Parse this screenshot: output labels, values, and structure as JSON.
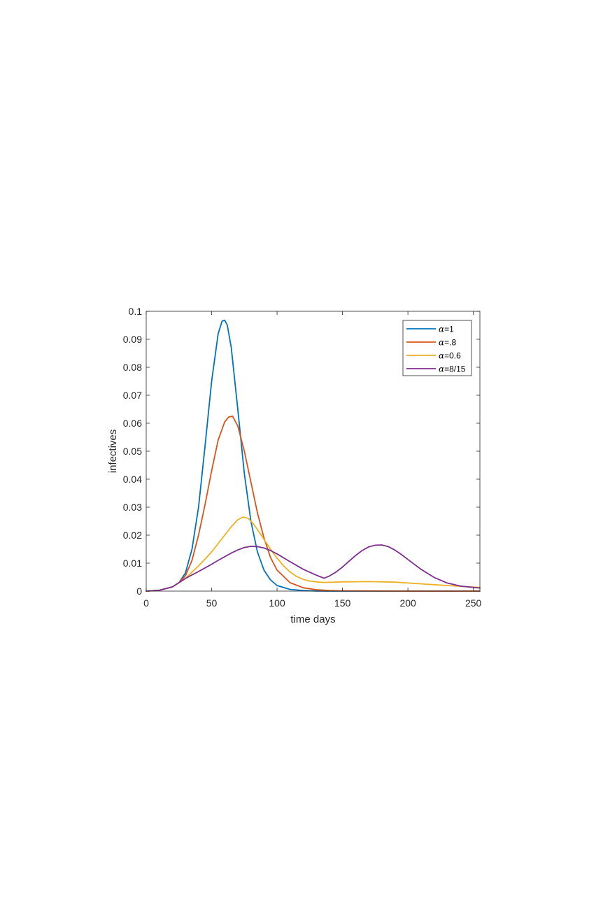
{
  "chart_data": {
    "type": "line",
    "title": "",
    "xlabel": "time days",
    "ylabel": "infectives",
    "xlim": [
      0,
      255
    ],
    "ylim": [
      0,
      0.1
    ],
    "xticks": [
      0,
      50,
      100,
      150,
      200,
      250
    ],
    "xtick_labels": [
      "0",
      "50",
      "100",
      "150",
      "200",
      "250"
    ],
    "yticks": [
      0,
      0.01,
      0.02,
      0.03,
      0.04,
      0.05,
      0.06,
      0.07,
      0.08,
      0.09,
      0.1
    ],
    "ytick_labels": [
      "0",
      "0.01",
      "0.02",
      "0.03",
      "0.04",
      "0.05",
      "0.06",
      "0.07",
      "0.08",
      "0.09",
      "0.1"
    ],
    "grid": false,
    "legend_position": "top-right",
    "series": [
      {
        "name": "α=1",
        "legend_symbol": "α",
        "legend_value": "=1",
        "color": "#0072BD",
        "x": [
          0,
          10,
          20,
          25,
          30,
          35,
          40,
          45,
          50,
          55,
          58,
          60,
          62,
          65,
          70,
          75,
          80,
          85,
          90,
          95,
          100,
          110,
          120,
          130,
          140,
          150,
          200,
          255
        ],
        "y": [
          0,
          0.0003,
          0.0015,
          0.003,
          0.0065,
          0.015,
          0.03,
          0.052,
          0.075,
          0.092,
          0.0965,
          0.0968,
          0.095,
          0.087,
          0.065,
          0.042,
          0.025,
          0.014,
          0.0075,
          0.004,
          0.002,
          0.0006,
          0.0002,
          5e-05,
          0,
          0,
          0,
          0
        ]
      },
      {
        "name": "α=.8",
        "legend_symbol": "α",
        "legend_value": "=.8",
        "color": "#D95319",
        "x": [
          0,
          10,
          20,
          25,
          30,
          35,
          40,
          45,
          50,
          55,
          60,
          63,
          66,
          70,
          75,
          80,
          85,
          90,
          95,
          100,
          110,
          120,
          130,
          140,
          150,
          200,
          255
        ],
        "y": [
          0,
          0.0003,
          0.0015,
          0.003,
          0.0055,
          0.011,
          0.02,
          0.031,
          0.043,
          0.054,
          0.0605,
          0.0622,
          0.0625,
          0.059,
          0.05,
          0.039,
          0.028,
          0.019,
          0.012,
          0.0075,
          0.003,
          0.0012,
          0.0005,
          0.0002,
          0.0001,
          0,
          0
        ]
      },
      {
        "name": "α=0.6",
        "legend_symbol": "α",
        "legend_value": "=0.6",
        "color": "#EDB120",
        "x": [
          0,
          10,
          20,
          25,
          30,
          35,
          40,
          45,
          50,
          55,
          60,
          65,
          70,
          74,
          78,
          82,
          85,
          90,
          95,
          100,
          105,
          110,
          115,
          120,
          125,
          130,
          136,
          150,
          170,
          190,
          210,
          230,
          255
        ],
        "y": [
          0,
          0.0003,
          0.0015,
          0.003,
          0.0045,
          0.0068,
          0.009,
          0.0115,
          0.014,
          0.017,
          0.02,
          0.023,
          0.0255,
          0.0265,
          0.026,
          0.024,
          0.022,
          0.0185,
          0.015,
          0.0118,
          0.009,
          0.0068,
          0.0052,
          0.0042,
          0.0036,
          0.0033,
          0.0031,
          0.0033,
          0.0034,
          0.0032,
          0.0026,
          0.002,
          0.0013
        ]
      },
      {
        "name": "α=8/15",
        "legend_symbol": "α",
        "legend_value": "=8/15",
        "color": "#7E2F8E",
        "x": [
          0,
          10,
          20,
          25,
          30,
          35,
          40,
          45,
          50,
          55,
          60,
          65,
          70,
          75,
          80,
          85,
          90,
          95,
          100,
          110,
          120,
          130,
          136,
          140,
          145,
          150,
          155,
          160,
          165,
          170,
          175,
          180,
          185,
          190,
          195,
          200,
          210,
          220,
          230,
          240,
          255
        ],
        "y": [
          0,
          0.0003,
          0.0015,
          0.003,
          0.0045,
          0.0058,
          0.007,
          0.0083,
          0.0096,
          0.011,
          0.0123,
          0.0136,
          0.0147,
          0.0156,
          0.016,
          0.0159,
          0.0154,
          0.0145,
          0.0133,
          0.0105,
          0.0078,
          0.0057,
          0.0046,
          0.0054,
          0.0068,
          0.0086,
          0.0107,
          0.0127,
          0.0145,
          0.0158,
          0.0164,
          0.0165,
          0.0159,
          0.0147,
          0.0131,
          0.0113,
          0.0078,
          0.0049,
          0.0029,
          0.0018,
          0.0011
        ]
      }
    ]
  }
}
